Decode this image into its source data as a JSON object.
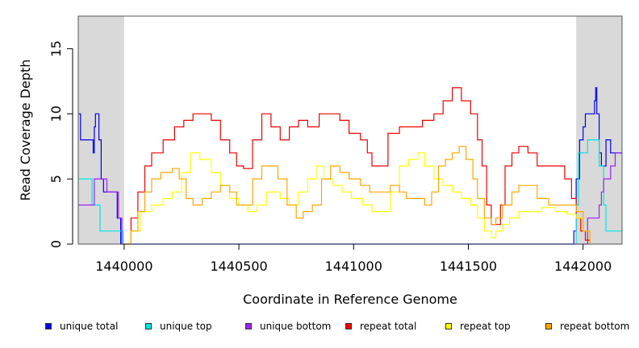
{
  "chart_data": {
    "type": "line",
    "title": "",
    "xlabel": "Coordinate in Reference Genome",
    "ylabel": "Read Coverage Depth",
    "xlim": [
      1439800,
      1442170
    ],
    "ylim": [
      0,
      17.5
    ],
    "x_ticks": [
      1440000,
      1440500,
      1441000,
      1441500,
      1442000
    ],
    "x_tick_labels": [
      "1440000",
      "1440500",
      "1441000",
      "1441500",
      "1442000"
    ],
    "y_ticks": [
      0,
      5,
      10,
      15
    ],
    "y_tick_labels": [
      "0",
      "5",
      "10",
      "15"
    ],
    "flank_regions": [
      [
        1439800,
        1440000
      ],
      [
        1441970,
        1442170
      ]
    ],
    "flank_color": "#d9d9d9",
    "grid": false,
    "legend_position": "bottom",
    "series": [
      {
        "name": "unique total",
        "color": "#0000ee",
        "points": [
          [
            1439800,
            10
          ],
          [
            1439810,
            8
          ],
          [
            1439860,
            8
          ],
          [
            1439865,
            7
          ],
          [
            1439870,
            9
          ],
          [
            1439875,
            10
          ],
          [
            1439890,
            8
          ],
          [
            1439900,
            5
          ],
          [
            1439910,
            4
          ],
          [
            1439960,
            4
          ],
          [
            1439970,
            2
          ],
          [
            1439985,
            0
          ],
          [
            1441950,
            0
          ],
          [
            1441960,
            1
          ],
          [
            1441970,
            5
          ],
          [
            1441985,
            8
          ],
          [
            1442000,
            9
          ],
          [
            1442010,
            10
          ],
          [
            1442040,
            10
          ],
          [
            1442050,
            11
          ],
          [
            1442055,
            12
          ],
          [
            1442060,
            10
          ],
          [
            1442070,
            7
          ],
          [
            1442080,
            6
          ],
          [
            1442100,
            8
          ],
          [
            1442120,
            7
          ],
          [
            1442150,
            7
          ],
          [
            1442170,
            7
          ]
        ]
      },
      {
        "name": "unique top",
        "color": "#00e5e5",
        "points": [
          [
            1439800,
            5
          ],
          [
            1439850,
            5
          ],
          [
            1439860,
            3
          ],
          [
            1439880,
            3
          ],
          [
            1439895,
            1
          ],
          [
            1439985,
            1
          ],
          [
            1439995,
            0
          ],
          [
            1441960,
            0
          ],
          [
            1441970,
            3
          ],
          [
            1441980,
            7
          ],
          [
            1442000,
            7
          ],
          [
            1442020,
            8
          ],
          [
            1442060,
            8
          ],
          [
            1442070,
            6
          ],
          [
            1442090,
            3
          ],
          [
            1442100,
            1
          ],
          [
            1442130,
            1
          ],
          [
            1442170,
            1
          ]
        ]
      },
      {
        "name": "unique bottom",
        "color": "#a020f0",
        "points": [
          [
            1439800,
            3
          ],
          [
            1439850,
            3
          ],
          [
            1439870,
            5
          ],
          [
            1439910,
            5
          ],
          [
            1439925,
            4
          ],
          [
            1439960,
            4
          ],
          [
            1439975,
            2
          ],
          [
            1439990,
            0
          ],
          [
            1442010,
            0
          ],
          [
            1442020,
            2
          ],
          [
            1442060,
            2
          ],
          [
            1442070,
            3
          ],
          [
            1442080,
            4
          ],
          [
            1442090,
            5
          ],
          [
            1442120,
            6
          ],
          [
            1442140,
            7
          ],
          [
            1442170,
            7
          ]
        ]
      },
      {
        "name": "repeat total",
        "color": "#ee0000",
        "points": [
          [
            1440000,
            0
          ],
          [
            1440030,
            2
          ],
          [
            1440060,
            4
          ],
          [
            1440090,
            6
          ],
          [
            1440120,
            7
          ],
          [
            1440170,
            8
          ],
          [
            1440220,
            9
          ],
          [
            1440260,
            9.5
          ],
          [
            1440300,
            10
          ],
          [
            1440340,
            10
          ],
          [
            1440380,
            9.5
          ],
          [
            1440420,
            8
          ],
          [
            1440460,
            7
          ],
          [
            1440490,
            6
          ],
          [
            1440520,
            5.8
          ],
          [
            1440560,
            8
          ],
          [
            1440600,
            10
          ],
          [
            1440640,
            9
          ],
          [
            1440680,
            8
          ],
          [
            1440720,
            9
          ],
          [
            1440760,
            9.5
          ],
          [
            1440800,
            9
          ],
          [
            1440850,
            10
          ],
          [
            1440900,
            10
          ],
          [
            1440940,
            9.5
          ],
          [
            1440980,
            8.5
          ],
          [
            1441030,
            8
          ],
          [
            1441060,
            7
          ],
          [
            1441080,
            6
          ],
          [
            1441110,
            6
          ],
          [
            1441150,
            8.5
          ],
          [
            1441200,
            9
          ],
          [
            1441250,
            9
          ],
          [
            1441300,
            9.5
          ],
          [
            1441350,
            10
          ],
          [
            1441390,
            11
          ],
          [
            1441430,
            12
          ],
          [
            1441470,
            11
          ],
          [
            1441510,
            10
          ],
          [
            1441540,
            8
          ],
          [
            1441560,
            6
          ],
          [
            1441580,
            3
          ],
          [
            1441600,
            1.5
          ],
          [
            1441620,
            1.5
          ],
          [
            1441640,
            3
          ],
          [
            1441660,
            6
          ],
          [
            1441690,
            7
          ],
          [
            1441720,
            7.5
          ],
          [
            1441760,
            7
          ],
          [
            1441800,
            6
          ],
          [
            1441860,
            6
          ],
          [
            1441920,
            5
          ],
          [
            1441950,
            3.5
          ],
          [
            1441970,
            2
          ],
          [
            1441990,
            1
          ],
          [
            1442010,
            0.3
          ],
          [
            1442030,
            0
          ]
        ]
      },
      {
        "name": "repeat top",
        "color": "#ffff00",
        "points": [
          [
            1440000,
            0
          ],
          [
            1440030,
            1
          ],
          [
            1440070,
            2.5
          ],
          [
            1440120,
            3
          ],
          [
            1440170,
            3.5
          ],
          [
            1440210,
            4
          ],
          [
            1440250,
            5.5
          ],
          [
            1440290,
            7
          ],
          [
            1440330,
            6.5
          ],
          [
            1440380,
            5.5
          ],
          [
            1440420,
            4.5
          ],
          [
            1440460,
            3.5
          ],
          [
            1440500,
            3
          ],
          [
            1440540,
            2.5
          ],
          [
            1440580,
            3
          ],
          [
            1440620,
            4
          ],
          [
            1440680,
            3.5
          ],
          [
            1440720,
            3
          ],
          [
            1440760,
            4
          ],
          [
            1440800,
            5
          ],
          [
            1440840,
            6
          ],
          [
            1440870,
            5
          ],
          [
            1440910,
            4.5
          ],
          [
            1440950,
            4
          ],
          [
            1440990,
            3.5
          ],
          [
            1441040,
            3
          ],
          [
            1441080,
            2.5
          ],
          [
            1441120,
            2.5
          ],
          [
            1441160,
            4
          ],
          [
            1441200,
            6
          ],
          [
            1441240,
            6.5
          ],
          [
            1441280,
            7
          ],
          [
            1441310,
            6
          ],
          [
            1441350,
            5
          ],
          [
            1441390,
            4.5
          ],
          [
            1441430,
            4
          ],
          [
            1441470,
            3.5
          ],
          [
            1441510,
            3
          ],
          [
            1441540,
            2
          ],
          [
            1441570,
            1
          ],
          [
            1441600,
            0.5
          ],
          [
            1441620,
            1
          ],
          [
            1441650,
            1.5
          ],
          [
            1441680,
            2
          ],
          [
            1441720,
            2.5
          ],
          [
            1441770,
            2.5
          ],
          [
            1441820,
            2.8
          ],
          [
            1441880,
            2.5
          ],
          [
            1441930,
            2.3
          ],
          [
            1441970,
            2
          ],
          [
            1442000,
            1
          ],
          [
            1442030,
            0
          ]
        ]
      },
      {
        "name": "repeat bottom",
        "color": "#ffa500",
        "points": [
          [
            1440000,
            0
          ],
          [
            1440030,
            1
          ],
          [
            1440060,
            2.5
          ],
          [
            1440090,
            4
          ],
          [
            1440120,
            5
          ],
          [
            1440160,
            5.5
          ],
          [
            1440210,
            5.8
          ],
          [
            1440240,
            5
          ],
          [
            1440270,
            3.5
          ],
          [
            1440300,
            3
          ],
          [
            1440340,
            3.5
          ],
          [
            1440380,
            4
          ],
          [
            1440420,
            4.5
          ],
          [
            1440460,
            4
          ],
          [
            1440490,
            3
          ],
          [
            1440520,
            3
          ],
          [
            1440560,
            5
          ],
          [
            1440600,
            6
          ],
          [
            1440640,
            6
          ],
          [
            1440670,
            5
          ],
          [
            1440710,
            3
          ],
          [
            1440750,
            2
          ],
          [
            1440780,
            2.5
          ],
          [
            1440820,
            3
          ],
          [
            1440860,
            5
          ],
          [
            1440900,
            6
          ],
          [
            1440940,
            5.5
          ],
          [
            1440980,
            5
          ],
          [
            1441030,
            4.5
          ],
          [
            1441070,
            4
          ],
          [
            1441110,
            4
          ],
          [
            1441160,
            4.5
          ],
          [
            1441200,
            4
          ],
          [
            1441230,
            3.5
          ],
          [
            1441270,
            3.5
          ],
          [
            1441310,
            3
          ],
          [
            1441340,
            4
          ],
          [
            1441370,
            6
          ],
          [
            1441400,
            6.5
          ],
          [
            1441430,
            7
          ],
          [
            1441460,
            7.5
          ],
          [
            1441490,
            6.5
          ],
          [
            1441520,
            5
          ],
          [
            1441540,
            3.5
          ],
          [
            1441570,
            2
          ],
          [
            1441600,
            1.5
          ],
          [
            1441620,
            2
          ],
          [
            1441650,
            3
          ],
          [
            1441690,
            4
          ],
          [
            1441720,
            4.5
          ],
          [
            1441760,
            4.5
          ],
          [
            1441800,
            3.5
          ],
          [
            1441850,
            3
          ],
          [
            1441900,
            3
          ],
          [
            1441940,
            3
          ],
          [
            1441970,
            2.5
          ],
          [
            1442000,
            1
          ],
          [
            1442030,
            0
          ]
        ]
      }
    ]
  },
  "legend": {
    "items": [
      {
        "label": "unique total",
        "color": "#0000ee"
      },
      {
        "label": "unique top",
        "color": "#00e5e5"
      },
      {
        "label": "unique bottom",
        "color": "#a020f0"
      },
      {
        "label": "repeat total",
        "color": "#ee0000"
      },
      {
        "label": "repeat top",
        "color": "#ffff00"
      },
      {
        "label": "repeat bottom",
        "color": "#ffa500"
      }
    ]
  }
}
